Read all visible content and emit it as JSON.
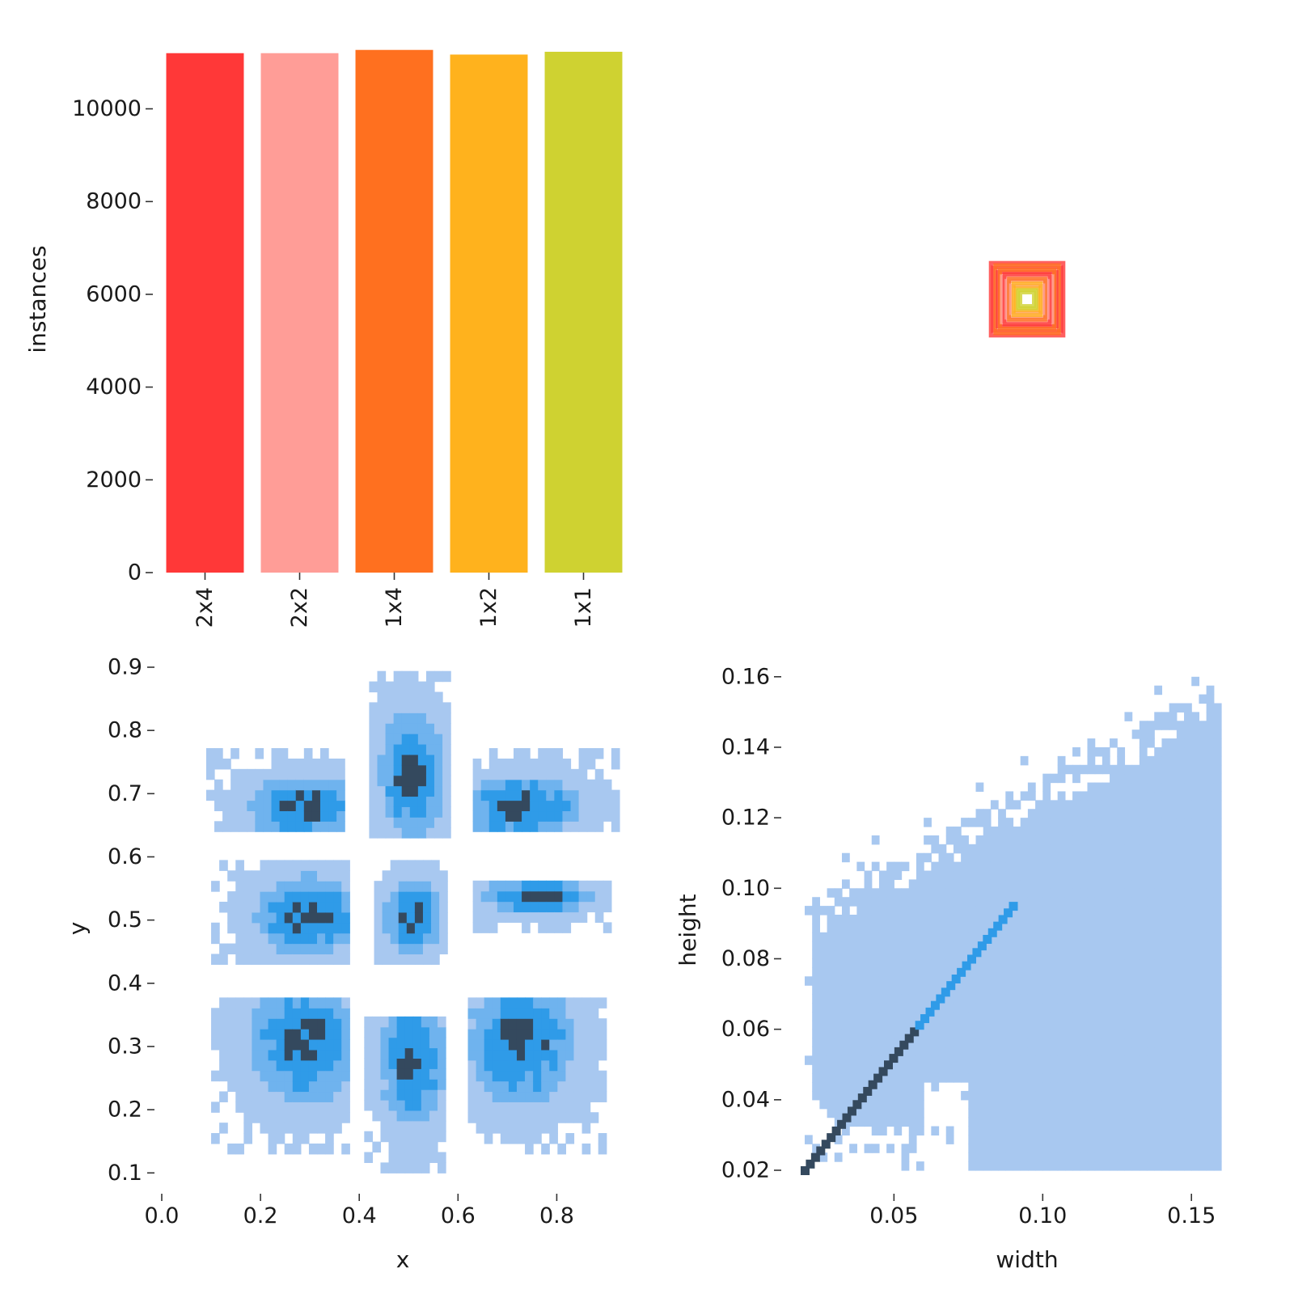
{
  "chart_data": [
    {
      "type": "bar",
      "categories": [
        "2x4",
        "2x2",
        "1x4",
        "1x2",
        "1x1"
      ],
      "values": [
        11200,
        11200,
        11270,
        11170,
        11230
      ],
      "colors": [
        "#ff3838",
        "#ff9d97",
        "#ff701f",
        "#ffb21d",
        "#cfd231"
      ],
      "xlabel": "",
      "ylabel": "instances",
      "ylim": [
        0,
        11300
      ],
      "yticks": [
        0,
        2000,
        4000,
        6000,
        8000,
        10000
      ],
      "ytick_labels": [
        "0",
        "2000",
        "4000",
        "6000",
        "8000",
        "10000"
      ]
    },
    {
      "type": "box-overlay",
      "description_free": true,
      "boxes": [
        {
          "w": 0.16,
          "h": 0.16,
          "color": "#ff3838"
        },
        {
          "w": 0.15,
          "h": 0.14,
          "color": "#ff3838"
        },
        {
          "w": 0.14,
          "h": 0.15,
          "color": "#ff701f"
        },
        {
          "w": 0.13,
          "h": 0.12,
          "color": "#ff3838"
        },
        {
          "w": 0.12,
          "h": 0.13,
          "color": "#ff701f"
        },
        {
          "w": 0.11,
          "h": 0.1,
          "color": "#ff9d97"
        },
        {
          "w": 0.1,
          "h": 0.11,
          "color": "#ff3838"
        },
        {
          "w": 0.09,
          "h": 0.08,
          "color": "#ff9d97"
        },
        {
          "w": 0.08,
          "h": 0.09,
          "color": "#ff701f"
        },
        {
          "w": 0.07,
          "h": 0.06,
          "color": "#ff9d97"
        },
        {
          "w": 0.06,
          "h": 0.07,
          "color": "#ffb21d"
        },
        {
          "w": 0.05,
          "h": 0.05,
          "color": "#ffb21d"
        },
        {
          "w": 0.04,
          "h": 0.04,
          "color": "#cfd231"
        },
        {
          "w": 0.03,
          "h": 0.03,
          "color": "#cfd231"
        }
      ]
    },
    {
      "type": "heatmap",
      "xlabel": "x",
      "ylabel": "y",
      "xlim": [
        0.0,
        0.95
      ],
      "ylim": [
        0.085,
        0.9
      ],
      "xticks": [
        0.0,
        0.2,
        0.4,
        0.6,
        0.8
      ],
      "xtick_labels": [
        "0.0",
        "0.2",
        "0.4",
        "0.6",
        "0.8"
      ],
      "yticks": [
        0.1,
        0.2,
        0.3,
        0.4,
        0.5,
        0.6,
        0.7,
        0.8,
        0.9
      ],
      "ytick_labels": [
        "0.1",
        "0.2",
        "0.3",
        "0.4",
        "0.5",
        "0.6",
        "0.7",
        "0.8",
        "0.9"
      ],
      "clusters": [
        {
          "x": [
            0.09,
            0.37
          ],
          "y": [
            0.64,
            0.76
          ],
          "peak": [
            0.28,
            0.67
          ]
        },
        {
          "x": [
            0.42,
            0.58
          ],
          "y": [
            0.63,
            0.88
          ],
          "peak": [
            0.5,
            0.72
          ]
        },
        {
          "x": [
            0.63,
            0.92
          ],
          "y": [
            0.64,
            0.76
          ],
          "peak": [
            0.72,
            0.67
          ]
        },
        {
          "x": [
            0.1,
            0.37
          ],
          "y": [
            0.43,
            0.58
          ],
          "peak": [
            0.29,
            0.5
          ]
        },
        {
          "x": [
            0.43,
            0.57
          ],
          "y": [
            0.43,
            0.58
          ],
          "peak": [
            0.5,
            0.5
          ]
        },
        {
          "x": [
            0.63,
            0.9
          ],
          "y": [
            0.48,
            0.55
          ],
          "peak": [
            0.75,
            0.53
          ]
        },
        {
          "x": [
            0.1,
            0.37
          ],
          "y": [
            0.13,
            0.37
          ],
          "peak": [
            0.28,
            0.3
          ]
        },
        {
          "x": [
            0.41,
            0.57
          ],
          "y": [
            0.1,
            0.34
          ],
          "peak": [
            0.5,
            0.27
          ]
        },
        {
          "x": [
            0.62,
            0.89
          ],
          "y": [
            0.13,
            0.37
          ],
          "peak": [
            0.72,
            0.3
          ]
        }
      ],
      "colors": {
        "low": "#a8c8f0",
        "mid": "#2f9be8",
        "high": "#34495e"
      }
    },
    {
      "type": "heatmap",
      "xlabel": "width",
      "ylabel": "height",
      "xlim": [
        0.0,
        0.16
      ],
      "ylim": [
        0.02,
        0.165
      ],
      "xticks": [
        0.05,
        0.1,
        0.15
      ],
      "xtick_labels": [
        "0.05",
        "0.10",
        "0.15"
      ],
      "yticks": [
        0.02,
        0.04,
        0.06,
        0.08,
        0.1,
        0.12,
        0.14,
        0.16
      ],
      "ytick_labels": [
        "0.02",
        "0.04",
        "0.06",
        "0.08",
        "0.10",
        "0.12",
        "0.14",
        "0.16"
      ],
      "diagonal": {
        "from": [
          0.02,
          0.02
        ],
        "to": [
          0.09,
          0.095
        ]
      },
      "colors": {
        "low": "#a8c8f0",
        "mid": "#2f9be8",
        "high": "#34495e"
      }
    }
  ]
}
